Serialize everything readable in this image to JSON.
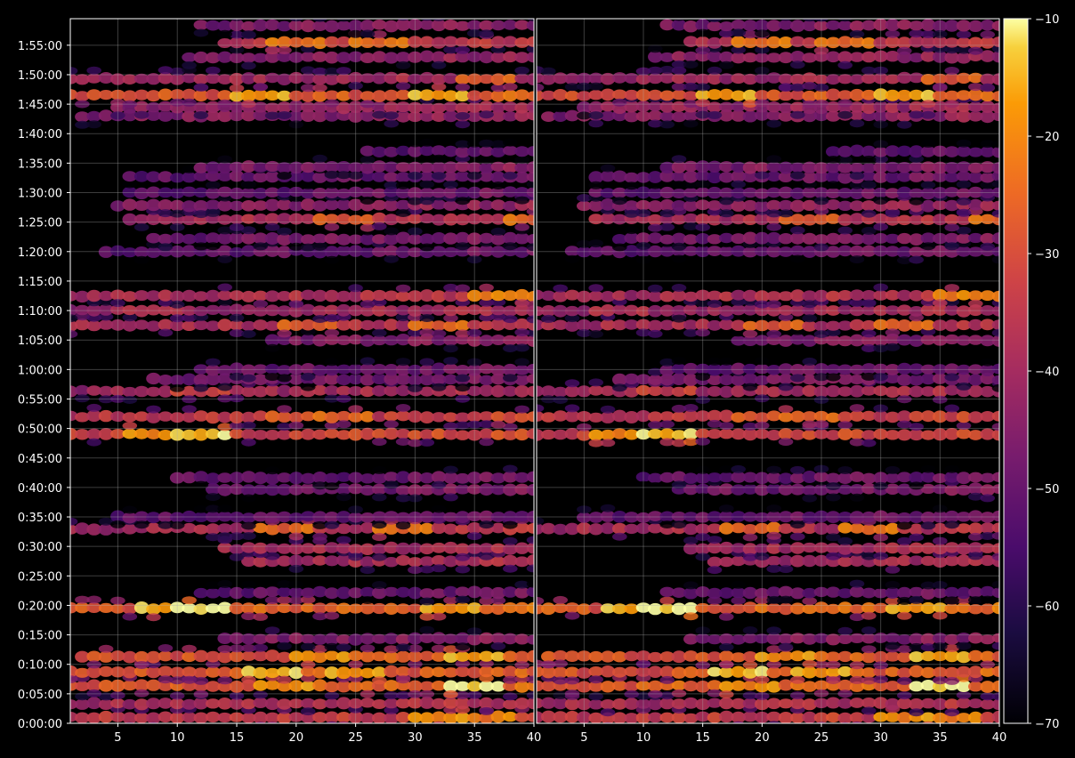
{
  "chart_data": {
    "type": "heatmap",
    "title": "",
    "xlabel": "",
    "ylabel": "",
    "background": "#000000",
    "grid": true,
    "colormap": "inferno",
    "colorbar": {
      "range": [
        -70,
        -10
      ],
      "ticks": [
        -70,
        -60,
        -50,
        -40,
        -30,
        -20,
        -10
      ],
      "tick_labels": [
        "−70",
        "−60",
        "−50",
        "−40",
        "−30",
        "−20",
        "−10"
      ]
    },
    "panels": [
      {
        "name": "left",
        "xlim": [
          1,
          40
        ],
        "x_ticks": [
          5,
          10,
          15,
          20,
          25,
          30,
          35,
          40
        ],
        "x_tick_labels": [
          "5",
          "10",
          "15",
          "20",
          "25",
          "30",
          "35",
          "40"
        ]
      },
      {
        "name": "right",
        "xlim": [
          1,
          40
        ],
        "x_ticks": [
          5,
          10,
          15,
          20,
          25,
          30,
          35,
          40
        ],
        "x_tick_labels": [
          "5",
          "10",
          "15",
          "20",
          "25",
          "30",
          "35",
          "40"
        ]
      }
    ],
    "ylim_seconds": [
      0,
      7170
    ],
    "y_ticks_seconds": [
      0,
      300,
      600,
      900,
      1200,
      1500,
      1800,
      2100,
      2400,
      2700,
      3000,
      3300,
      3600,
      3900,
      4200,
      4500,
      4800,
      5100,
      5400,
      5700,
      6000,
      6300,
      6600,
      6900
    ],
    "y_tick_labels": [
      "0:00:00",
      "0:05:00",
      "0:10:00",
      "0:15:00",
      "0:20:00",
      "0:25:00",
      "0:30:00",
      "0:35:00",
      "0:40:00",
      "0:45:00",
      "0:50:00",
      "0:55:00",
      "1:00:00",
      "1:05:00",
      "1:10:00",
      "1:15:00",
      "1:20:00",
      "1:25:00",
      "1:30:00",
      "1:35:00",
      "1:40:00",
      "1:45:00",
      "1:50:00",
      "1:55:00"
    ],
    "bands": [
      {
        "t": 60,
        "level": -36,
        "x_from": 1,
        "hot": [
          [
            32,
            -22
          ],
          [
            36,
            -24
          ]
        ]
      },
      {
        "t": 200,
        "level": -40,
        "x_from": 1,
        "hot": []
      },
      {
        "t": 380,
        "level": -28,
        "x_from": 1,
        "hot": [
          [
            35,
            -12
          ],
          [
            19,
            -22
          ]
        ]
      },
      {
        "t": 520,
        "level": -30,
        "x_from": 1,
        "hot": [
          [
            18,
            -17
          ],
          [
            25,
            -20
          ]
        ]
      },
      {
        "t": 680,
        "level": -30,
        "x_from": 2,
        "hot": [
          [
            35,
            -19
          ],
          [
            22,
            -22
          ]
        ]
      },
      {
        "t": 860,
        "level": -48,
        "x_from": 14,
        "hot": []
      },
      {
        "t": 1170,
        "level": -28,
        "x_from": 1,
        "hot": [
          [
            12,
            -12
          ],
          [
            9,
            -18
          ],
          [
            33,
            -20
          ]
        ]
      },
      {
        "t": 1330,
        "level": -52,
        "x_from": 12,
        "hot": []
      },
      {
        "t": 1650,
        "level": -42,
        "x_from": 16,
        "hot": []
      },
      {
        "t": 1780,
        "level": -42,
        "x_from": 14,
        "hot": []
      },
      {
        "t": 1980,
        "level": -40,
        "x_from": 1,
        "hot": [
          [
            19,
            -28
          ],
          [
            29,
            -26
          ]
        ]
      },
      {
        "t": 2100,
        "level": -52,
        "x_from": 5,
        "hot": []
      },
      {
        "t": 2380,
        "level": -50,
        "x_from": 13,
        "hot": []
      },
      {
        "t": 2500,
        "level": -52,
        "x_from": 10,
        "hot": []
      },
      {
        "t": 2940,
        "level": -34,
        "x_from": 1,
        "hot": [
          [
            12,
            -17
          ],
          [
            8,
            -22
          ]
        ]
      },
      {
        "t": 3120,
        "level": -36,
        "x_from": 1,
        "hot": [
          [
            20,
            -30
          ],
          [
            24,
            -28
          ]
        ]
      },
      {
        "t": 3380,
        "level": -42,
        "x_from": 1,
        "hot": [
          [
            12,
            -36
          ]
        ]
      },
      {
        "t": 3500,
        "level": -50,
        "x_from": 8,
        "hot": []
      },
      {
        "t": 3600,
        "level": -52,
        "x_from": 12,
        "hot": []
      },
      {
        "t": 3900,
        "level": -48,
        "x_from": 18,
        "hot": []
      },
      {
        "t": 4050,
        "level": -40,
        "x_from": 1,
        "hot": [
          [
            21,
            -30
          ],
          [
            32,
            -28
          ]
        ]
      },
      {
        "t": 4200,
        "level": -42,
        "x_from": 1,
        "hot": [
          [
            8,
            -40
          ]
        ]
      },
      {
        "t": 4350,
        "level": -40,
        "x_from": 1,
        "hot": [
          [
            37,
            -26
          ],
          [
            39,
            -24
          ]
        ]
      },
      {
        "t": 4800,
        "level": -52,
        "x_from": 4,
        "hot": []
      },
      {
        "t": 4930,
        "level": -50,
        "x_from": 8,
        "hot": []
      },
      {
        "t": 5130,
        "level": -40,
        "x_from": 6,
        "hot": [
          [
            24,
            -30
          ],
          [
            40,
            -27
          ]
        ]
      },
      {
        "t": 5270,
        "level": -46,
        "x_from": 5,
        "hot": []
      },
      {
        "t": 5400,
        "level": -52,
        "x_from": 6,
        "hot": []
      },
      {
        "t": 5560,
        "level": -52,
        "x_from": 6,
        "hot": []
      },
      {
        "t": 5660,
        "level": -48,
        "x_from": 12,
        "hot": []
      },
      {
        "t": 5820,
        "level": -54,
        "x_from": 26,
        "hot": []
      },
      {
        "t": 6180,
        "level": -46,
        "x_from": 2,
        "hot": []
      },
      {
        "t": 6270,
        "level": -44,
        "x_from": 5,
        "hot": []
      },
      {
        "t": 6390,
        "level": -30,
        "x_from": 1,
        "hot": [
          [
            17,
            -20
          ],
          [
            32,
            -19
          ]
        ]
      },
      {
        "t": 6560,
        "level": -42,
        "x_from": 1,
        "hot": [
          [
            36,
            -30
          ]
        ]
      },
      {
        "t": 6780,
        "level": -46,
        "x_from": 11,
        "hot": []
      },
      {
        "t": 6930,
        "level": -38,
        "x_from": 14,
        "hot": [
          [
            20,
            -26
          ],
          [
            27,
            -26
          ]
        ]
      },
      {
        "t": 7100,
        "level": -48,
        "x_from": 12,
        "hot": []
      }
    ]
  }
}
